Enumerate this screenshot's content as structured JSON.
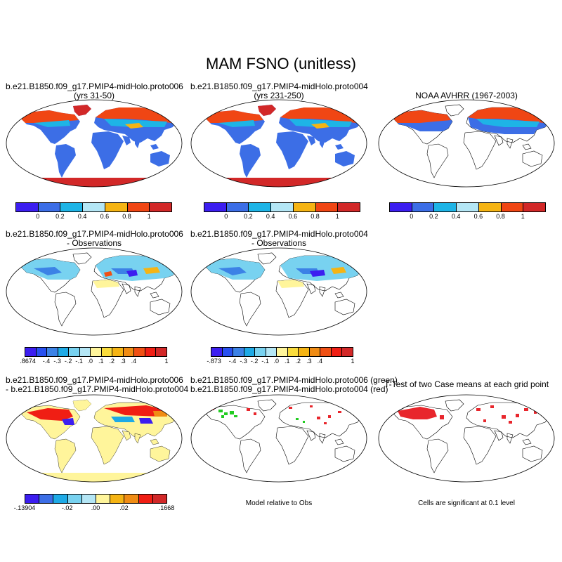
{
  "title": "MAM FSNO (unitless)",
  "panels": {
    "p1": {
      "line1": "b.e21.B1850.f09_g17.PMIP4-midHolo.proto006",
      "line2": "(yrs 31-50)"
    },
    "p2": {
      "line1": "b.e21.B1850.f09_g17.PMIP4-midHolo.proto004",
      "line2": "(yrs 231-250)"
    },
    "p3": {
      "line1": "NOAA AVHRR (1967-2003)"
    },
    "p4": {
      "line1": "b.e21.B1850.f09_g17.PMIP4-midHolo.proto006",
      "line2": "- Observations"
    },
    "p5": {
      "line1": "b.e21.B1850.f09_g17.PMIP4-midHolo.proto004",
      "line2": "- Observations"
    },
    "p6": {
      "line1": "b.e21.B1850.f09_g17.PMIP4-midHolo.proto006",
      "line2": "- b.e21.B1850.f09_g17.PMIP4-midHolo.proto004"
    },
    "p7": {
      "line1": "b.e21.B1850.f09_g17.PMIP4-midHolo.proto006 (green)",
      "line2": "b.e21.B1850.f09_g17.PMIP4-midHolo.proto004 (red)"
    },
    "p8": {
      "line1": "T-Test of two Case means at each grid point"
    }
  },
  "notes": {
    "model_relative": "Model relative to Obs",
    "significance": "Cells are significant at 0.1 level"
  },
  "colorbars": {
    "abs": {
      "colors": [
        "#3c1ef0",
        "#3c6ee6",
        "#1eb4e6",
        "#b4e6f5",
        "#f5b414",
        "#f04614",
        "#d22828"
      ],
      "labels": [
        "0",
        "0.2",
        "0.4",
        "0.6",
        "0.8",
        "1"
      ]
    },
    "diff": {
      "colors": [
        "#3c1ef0",
        "#2850f0",
        "#3c82e6",
        "#1eaae6",
        "#78d2f0",
        "#b4e6f5",
        "#fff59b",
        "#fadc3c",
        "#f5b414",
        "#f08c14",
        "#f05014",
        "#f01e14",
        "#d22828"
      ],
      "labels1": [
        ".8674",
        "-.4",
        "-.3",
        "-.2",
        "-.1",
        ".0",
        ".1",
        ".2",
        ".3",
        ".4",
        "1"
      ],
      "labels2": [
        "-.873",
        "-.4",
        "-.3",
        "-.2",
        "-.1",
        ".0",
        ".1",
        ".2",
        ".3",
        ".4",
        "1"
      ]
    },
    "cdiff": {
      "colors": [
        "#3c1ef0",
        "#3c6ee6",
        "#1eaae6",
        "#78d2f0",
        "#b4e6f5",
        "#fff59b",
        "#f5b414",
        "#f08c14",
        "#f01e14",
        "#d22828"
      ],
      "labels": [
        "-.13904",
        "-.02",
        ".00",
        ".02",
        ".1668"
      ]
    }
  },
  "colors": {
    "land": "#3c6ee6",
    "north": "#f04614",
    "antarctic": "#d22828",
    "positive": "#fff59b",
    "sig_red": "#e8262c",
    "sig_green": "#22cc22"
  }
}
